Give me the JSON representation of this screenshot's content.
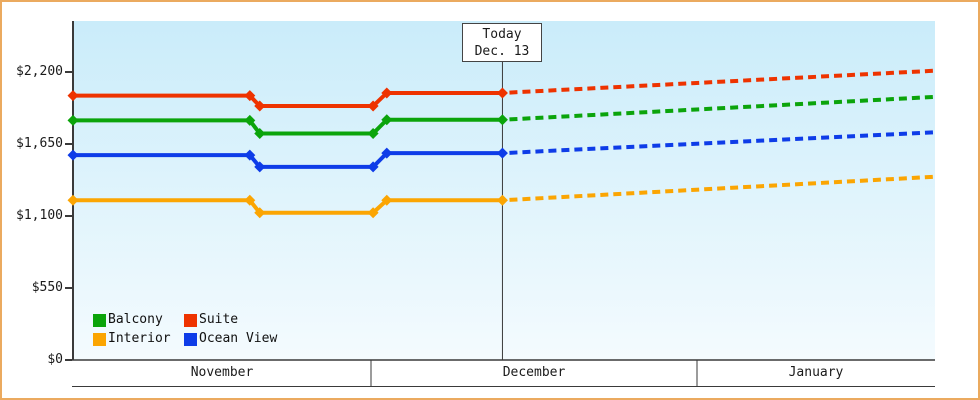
{
  "frame": {
    "border_color": "#EBAA5F",
    "plot_bg_top": "#CAECFA",
    "plot_bg_bottom": "#F4FBFE",
    "axis_color": "#3A3A3A"
  },
  "legend": {
    "items": [
      {
        "label": "Balcony",
        "color": "#0BA40B"
      },
      {
        "label": "Suite",
        "color": "#EE3300"
      },
      {
        "label": "Interior",
        "color": "#FBA502"
      },
      {
        "label": "Ocean View",
        "color": "#0E3CE8"
      }
    ]
  },
  "chart_data": {
    "type": "line",
    "title": "",
    "x_unit": "days since Nov 1",
    "months": [
      {
        "label": "November",
        "days": 30
      },
      {
        "label": "December",
        "days": 31
      },
      {
        "label": "January",
        "days": 23
      }
    ],
    "y_ticks": [
      {
        "value": 0,
        "label": "$0"
      },
      {
        "value": 550,
        "label": "$550"
      },
      {
        "value": 1100,
        "label": "$1,100"
      },
      {
        "value": 1650,
        "label": "$1,650"
      },
      {
        "value": 2200,
        "label": "$2,200"
      }
    ],
    "ylim": [
      0,
      2590
    ],
    "grid": false,
    "today": {
      "title": "Today",
      "date_label": "Dec. 13",
      "day": 42.5
    },
    "series": [
      {
        "name": "Suite",
        "color": "#EE3300",
        "solid": [
          {
            "day": 0,
            "price": 2020
          },
          {
            "day": 17.8,
            "price": 2020
          },
          {
            "day": 18.8,
            "price": 1940
          },
          {
            "day": 30.2,
            "price": 1940
          },
          {
            "day": 31.5,
            "price": 2040
          },
          {
            "day": 42.5,
            "price": 2040
          }
        ],
        "forecast": [
          {
            "day": 42.5,
            "price": 2040
          },
          {
            "day": 84,
            "price": 2210
          }
        ]
      },
      {
        "name": "Balcony",
        "color": "#0BA40B",
        "solid": [
          {
            "day": 0,
            "price": 1830
          },
          {
            "day": 17.8,
            "price": 1830
          },
          {
            "day": 18.8,
            "price": 1730
          },
          {
            "day": 30.2,
            "price": 1730
          },
          {
            "day": 31.5,
            "price": 1835
          },
          {
            "day": 42.5,
            "price": 1835
          }
        ],
        "forecast": [
          {
            "day": 42.5,
            "price": 1835
          },
          {
            "day": 84,
            "price": 2010
          }
        ]
      },
      {
        "name": "Ocean View",
        "color": "#0E3CE8",
        "solid": [
          {
            "day": 0,
            "price": 1565
          },
          {
            "day": 17.8,
            "price": 1565
          },
          {
            "day": 18.8,
            "price": 1475
          },
          {
            "day": 30.2,
            "price": 1475
          },
          {
            "day": 31.5,
            "price": 1580
          },
          {
            "day": 42.5,
            "price": 1580
          }
        ],
        "forecast": [
          {
            "day": 42.5,
            "price": 1580
          },
          {
            "day": 84,
            "price": 1740
          }
        ]
      },
      {
        "name": "Interior",
        "color": "#FBA502",
        "solid": [
          {
            "day": 0,
            "price": 1220
          },
          {
            "day": 17.8,
            "price": 1220
          },
          {
            "day": 18.8,
            "price": 1125
          },
          {
            "day": 30.2,
            "price": 1125
          },
          {
            "day": 31.5,
            "price": 1220
          },
          {
            "day": 42.5,
            "price": 1220
          }
        ],
        "forecast": [
          {
            "day": 42.5,
            "price": 1220
          },
          {
            "day": 84,
            "price": 1400
          }
        ]
      }
    ]
  }
}
